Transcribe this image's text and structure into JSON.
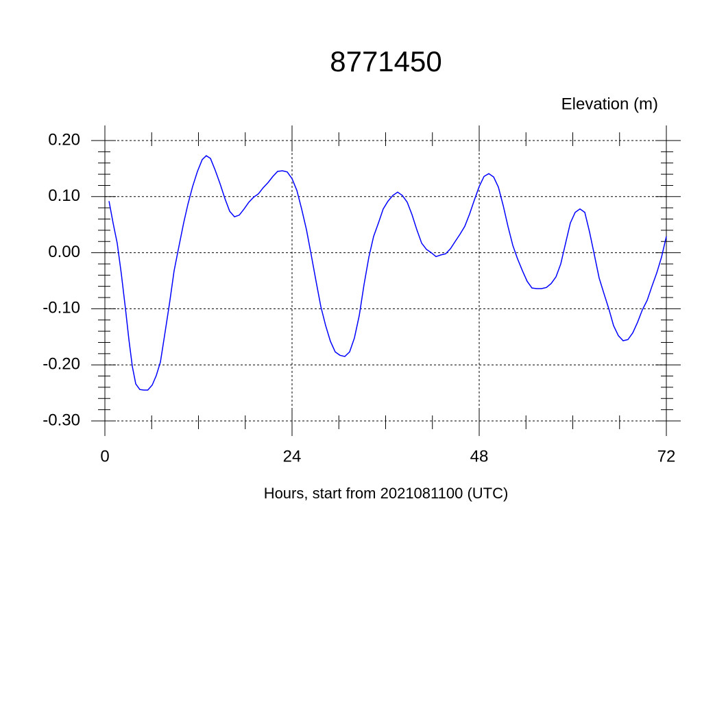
{
  "chart_data": {
    "type": "line",
    "title": "8771450",
    "y_label": "Elevation (m)",
    "x_label": "Hours, start from 2021081100 (UTC)",
    "xlim": [
      0,
      72
    ],
    "xticks": [
      0,
      24,
      48,
      72
    ],
    "ylim": [
      -0.3,
      0.2
    ],
    "yticks": [
      {
        "value": -0.3,
        "label": "-0.30"
      },
      {
        "value": -0.2,
        "label": "-0.20"
      },
      {
        "value": -0.1,
        "label": "-0.10"
      },
      {
        "value": 0,
        "label": "0.00"
      },
      {
        "value": 0.1,
        "label": "0.10"
      },
      {
        "value": 0.2,
        "label": "0.20"
      }
    ],
    "grid": true,
    "series": [
      {
        "color": "#0000ff",
        "x": [
          0.53,
          1.05,
          1.58,
          2.11,
          2.64,
          3.08,
          3.52,
          3.96,
          4.48,
          5.0,
          5.5,
          6.07,
          6.59,
          7.12,
          7.65,
          8.26,
          8.88,
          9.49,
          10.1,
          10.64,
          11.25,
          11.87,
          12.48,
          13.0,
          13.54,
          14.15,
          14.77,
          15.38,
          16.0,
          16.62,
          17.23,
          17.85,
          18.46,
          19.08,
          19.69,
          20.31,
          20.92,
          21.54,
          22.15,
          22.77,
          23.38,
          24.0,
          24.62,
          25.23,
          25.85,
          26.46,
          27.08,
          27.69,
          28.31,
          28.92,
          29.54,
          30.15,
          30.77,
          31.38,
          32.0,
          32.62,
          33.23,
          33.85,
          34.46,
          35.08,
          35.69,
          36.31,
          36.92,
          37.54,
          38.15,
          38.77,
          39.38,
          40.0,
          40.62,
          41.23,
          41.85,
          42.46,
          43.08,
          43.69,
          44.31,
          44.92,
          45.54,
          46.15,
          46.77,
          47.38,
          48.0,
          48.62,
          49.23,
          49.85,
          50.46,
          51.08,
          51.69,
          52.31,
          52.92,
          53.54,
          54.15,
          54.77,
          55.38,
          56.0,
          56.62,
          57.23,
          57.85,
          58.46,
          59.08,
          59.69,
          60.31,
          60.92,
          61.54,
          62.15,
          62.77,
          63.38,
          64.0,
          64.62,
          65.23,
          65.85,
          66.46,
          67.07,
          67.69,
          68.31,
          68.92,
          69.54,
          70.15,
          70.77,
          71.38,
          72.0
        ],
        "values": [
          0.092,
          0.053,
          0.017,
          -0.038,
          -0.1,
          -0.155,
          -0.203,
          -0.234,
          -0.244,
          -0.245,
          -0.245,
          -0.236,
          -0.219,
          -0.195,
          -0.148,
          -0.093,
          -0.032,
          0.011,
          0.053,
          0.086,
          0.118,
          0.145,
          0.166,
          0.173,
          0.168,
          0.147,
          0.123,
          0.097,
          0.074,
          0.064,
          0.067,
          0.078,
          0.09,
          0.099,
          0.105,
          0.116,
          0.125,
          0.136,
          0.145,
          0.146,
          0.144,
          0.132,
          0.111,
          0.078,
          0.041,
          -0.004,
          -0.051,
          -0.096,
          -0.13,
          -0.158,
          -0.177,
          -0.183,
          -0.185,
          -0.177,
          -0.152,
          -0.112,
          -0.057,
          -0.008,
          0.029,
          0.053,
          0.078,
          0.092,
          0.102,
          0.108,
          0.102,
          0.09,
          0.068,
          0.041,
          0.017,
          0.006,
          0.0,
          -0.007,
          -0.004,
          -0.002,
          0.007,
          0.02,
          0.033,
          0.047,
          0.069,
          0.094,
          0.118,
          0.136,
          0.141,
          0.135,
          0.117,
          0.084,
          0.047,
          0.013,
          -0.011,
          -0.032,
          -0.051,
          -0.063,
          -0.064,
          -0.064,
          -0.062,
          -0.055,
          -0.043,
          -0.02,
          0.017,
          0.053,
          0.072,
          0.078,
          0.072,
          0.037,
          -0.004,
          -0.045,
          -0.073,
          -0.1,
          -0.13,
          -0.148,
          -0.157,
          -0.155,
          -0.143,
          -0.124,
          -0.102,
          -0.085,
          -0.06,
          -0.036,
          -0.008,
          0.029
        ]
      }
    ]
  }
}
